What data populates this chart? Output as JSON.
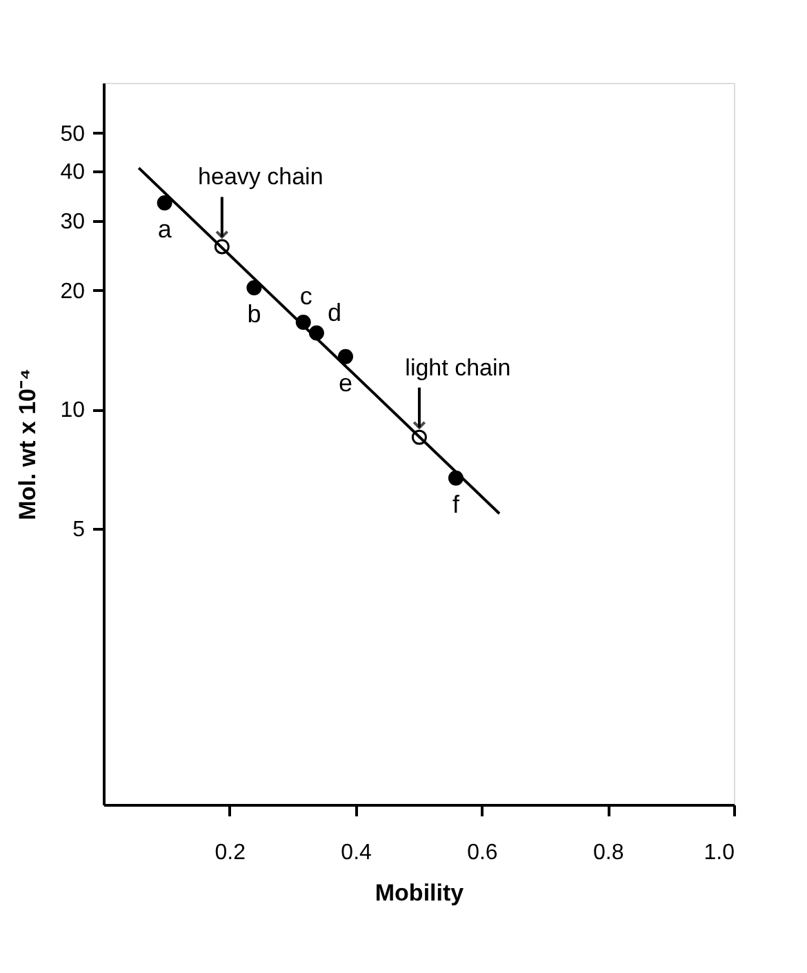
{
  "chart_data": {
    "type": "scatter",
    "xlabel": "Mobility",
    "ylabel": "Mol. wt x 10⁻⁴",
    "xlim": [
      0,
      1.0
    ],
    "xticks": [
      {
        "value": 0.2,
        "label": "0.2"
      },
      {
        "value": 0.4,
        "label": "0.4"
      },
      {
        "value": 0.6,
        "label": "0.6"
      },
      {
        "value": 0.8,
        "label": "0.8"
      },
      {
        "value": 1.0,
        "label": "1.0"
      }
    ],
    "ylim": [
      1,
      67
    ],
    "yticks": [
      5,
      10,
      20,
      30,
      40,
      50
    ],
    "log": "y",
    "grid": false,
    "series": [
      {
        "type": "line",
        "color": "#000000",
        "x": [
          0.056,
          0.628
        ],
        "values": [
          40.8,
          5.45
        ],
        "marker": "none"
      },
      {
        "type": "scatter",
        "color": "#000000",
        "x": [
          0.097,
          0.239,
          0.317,
          0.338,
          0.384,
          0.559
        ],
        "values": [
          33.3,
          20.3,
          16.6,
          15.6,
          13.6,
          6.7
        ],
        "marker": "circle"
      },
      {
        "type": "scatter",
        "color": "#ffffff",
        "x": [
          0.188,
          0.501
        ],
        "values": [
          25.8,
          8.5
        ],
        "marker": "circle"
      }
    ],
    "annotations": [
      {
        "text": "a",
        "x": 0.097,
        "y": 33.3
      },
      {
        "text": "b",
        "x": 0.239,
        "y": 20.3
      },
      {
        "text": "c",
        "x": 0.317,
        "y": 16.6
      },
      {
        "text": "d",
        "x": 0.338,
        "y": 15.6
      },
      {
        "text": "e",
        "x": 0.384,
        "y": 13.6
      },
      {
        "text": "f",
        "x": 0.559,
        "y": 6.7
      },
      {
        "text": "heavy chain",
        "x": 0.188,
        "y": 25.8
      },
      {
        "text": "light chain",
        "x": 0.501,
        "y": 8.5
      }
    ]
  }
}
